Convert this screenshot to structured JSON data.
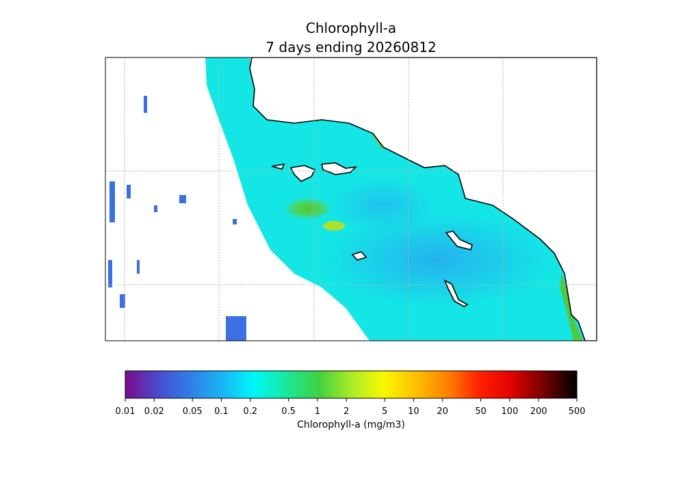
{
  "title": [
    "Chlorophyll-a",
    "7 days ending 20260812"
  ],
  "colorbar": {
    "label": "Chlorophyll-a (mg/m3)",
    "log": true,
    "lim": [
      0.01,
      500
    ],
    "ticks": [
      0.01,
      0.02,
      0.05,
      0.1,
      0.2,
      0.5,
      1,
      2,
      5,
      10,
      20,
      50,
      100,
      200,
      500
    ],
    "colors": [
      "#7a0a8c",
      "#4a4ccc",
      "#2f7ee8",
      "#1ab4f4",
      "#00f8f8",
      "#18e89c",
      "#40d040",
      "#a8ec28",
      "#f8f800",
      "#ffc000",
      "#ff8000",
      "#ff2000",
      "#e00000",
      "#700000",
      "#000000"
    ]
  }
}
